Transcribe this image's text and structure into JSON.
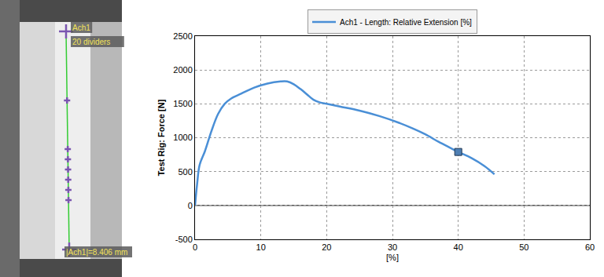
{
  "specimen": {
    "labels": [
      "Ach1",
      "20 dividers",
      "|Ach1|=8.406 mm"
    ]
  },
  "chart_data": {
    "type": "line",
    "x_label": "[%]",
    "y_label": "Test Rig: Force [N]",
    "xlim": [
      0,
      60
    ],
    "xticks": [
      0,
      10,
      20,
      30,
      40,
      50,
      60
    ],
    "ylim": [
      -500,
      2500
    ],
    "yticks": [
      -500,
      0,
      500,
      1000,
      1500,
      2000,
      2500
    ],
    "grid": true,
    "legend": "top",
    "series": [
      {
        "name": "Ach1 - Length: Relative Extension [%]",
        "color": "#4a8fd6",
        "line_style": "solid",
        "x": [
          0,
          0.3,
          0.7,
          1.5,
          2.5,
          3.5,
          4.5,
          5.5,
          7,
          9,
          11,
          13,
          14,
          15,
          16,
          17,
          18,
          19,
          20,
          22,
          25,
          28,
          31,
          33,
          35,
          37,
          39,
          40,
          42,
          44,
          45.5
        ],
        "values": [
          0,
          300,
          600,
          800,
          1100,
          1350,
          1500,
          1580,
          1650,
          1740,
          1800,
          1830,
          1830,
          1790,
          1720,
          1640,
          1560,
          1520,
          1500,
          1460,
          1400,
          1320,
          1220,
          1140,
          1050,
          940,
          840,
          790,
          700,
          580,
          460
        ]
      },
      {
        "type": "scatter",
        "marker": "square",
        "color": "#4f7fb3",
        "x": [
          40
        ],
        "values": [
          790
        ]
      }
    ]
  }
}
